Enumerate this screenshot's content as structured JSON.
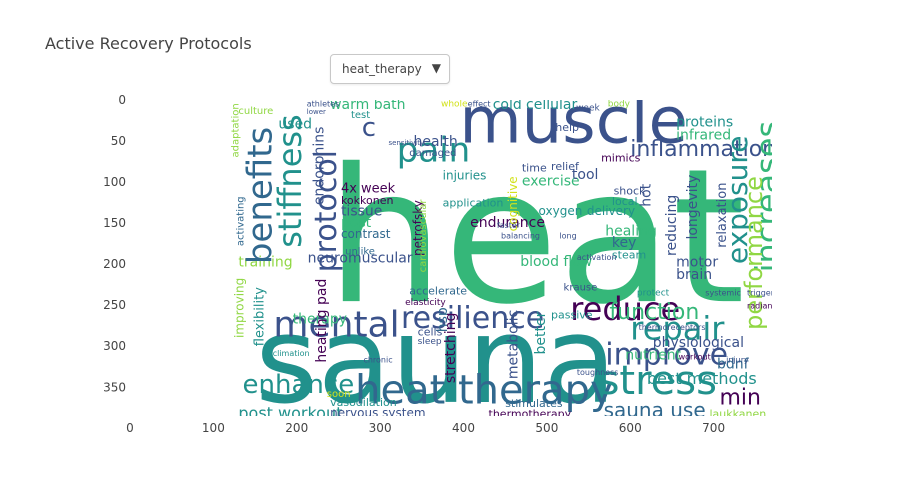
{
  "header": {
    "title": "Active Recovery Protocols"
  },
  "dropdown": {
    "selected": "heat_therapy",
    "arrow_icon": "triangle-down-icon"
  },
  "chart_data": {
    "type": "wordcloud",
    "title": "Active Recovery Protocols",
    "xlim": [
      0,
      770
    ],
    "ylim": [
      385,
      0
    ],
    "x_ticks": [
      "0",
      "100",
      "200",
      "300",
      "400",
      "500",
      "600",
      "700"
    ],
    "y_ticks": [
      "0",
      "50",
      "100",
      "150",
      "200",
      "250",
      "300",
      "350"
    ],
    "colors": {
      "dark_purple": "#440154",
      "indigo": "#3b528b",
      "slate": "#31688e",
      "teal": "#21918c",
      "green": "#35b779",
      "lime": "#90d743",
      "yellow": "#d2e21b"
    },
    "words": [
      {
        "text": "heat",
        "x": 235,
        "y": 245,
        "size": 186,
        "color": "#35b779",
        "rot": 0
      },
      {
        "text": "sauna",
        "x": 150,
        "y": 368,
        "size": 120,
        "color": "#21918c",
        "rot": 0
      },
      {
        "text": "muscle",
        "x": 395,
        "y": 52,
        "size": 64,
        "color": "#3b528b",
        "rot": 0
      },
      {
        "text": "heat therapy",
        "x": 270,
        "y": 370,
        "size": 40,
        "color": "#31688e",
        "rot": 0
      },
      {
        "text": "stress",
        "x": 562,
        "y": 358,
        "size": 40,
        "color": "#21918c",
        "rot": 0
      },
      {
        "text": "mental",
        "x": 172,
        "y": 288,
        "size": 36,
        "color": "#3b528b",
        "rot": 0
      },
      {
        "text": "resilience",
        "x": 325,
        "y": 278,
        "size": 30,
        "color": "#3b528b",
        "rot": 0
      },
      {
        "text": "reduce",
        "x": 528,
        "y": 268,
        "size": 32,
        "color": "#440154",
        "rot": 0
      },
      {
        "text": "improve",
        "x": 570,
        "y": 322,
        "size": 30,
        "color": "#3b528b",
        "rot": 0
      },
      {
        "text": "repair",
        "x": 600,
        "y": 292,
        "size": 32,
        "color": "#21918c",
        "rot": 0
      },
      {
        "text": "pain",
        "x": 320,
        "y": 75,
        "size": 34,
        "color": "#21918c",
        "rot": 0
      },
      {
        "text": "enhance",
        "x": 135,
        "y": 357,
        "size": 26,
        "color": "#21918c",
        "rot": 0
      },
      {
        "text": "inflammation",
        "x": 600,
        "y": 68,
        "size": 22,
        "color": "#3b528b",
        "rot": 0
      },
      {
        "text": "function",
        "x": 575,
        "y": 267,
        "size": 22,
        "color": "#35b779",
        "rot": 0
      },
      {
        "text": "sauna use",
        "x": 568,
        "y": 386,
        "size": 20,
        "color": "#31688e",
        "rot": 0
      },
      {
        "text": "post workout",
        "x": 130,
        "y": 388,
        "size": 16,
        "color": "#21918c",
        "rot": 0
      },
      {
        "text": "min",
        "x": 707,
        "y": 371,
        "size": 22,
        "color": "#440154",
        "rot": 0
      },
      {
        "text": "best methods",
        "x": 620,
        "y": 346,
        "size": 16,
        "color": "#21918c",
        "rot": 0
      },
      {
        "text": "physiological",
        "x": 627,
        "y": 301,
        "size": 14,
        "color": "#3b528b",
        "rot": 0
      },
      {
        "text": "nutrient",
        "x": 594,
        "y": 316,
        "size": 14,
        "color": "#35b779",
        "rot": 0
      },
      {
        "text": "bdnf",
        "x": 704,
        "y": 327,
        "size": 14,
        "color": "#31688e",
        "rot": 0
      },
      {
        "text": "laukkanen",
        "x": 695,
        "y": 387,
        "size": 11,
        "color": "#90d743",
        "rot": 0
      },
      {
        "text": "endurance",
        "x": 408,
        "y": 155,
        "size": 14,
        "color": "#440154",
        "rot": 0
      },
      {
        "text": "blood flow",
        "x": 468,
        "y": 202,
        "size": 14,
        "color": "#35b779",
        "rot": 0
      },
      {
        "text": "exercise",
        "x": 470,
        "y": 104,
        "size": 14,
        "color": "#35b779",
        "rot": 0
      },
      {
        "text": "tool",
        "x": 530,
        "y": 96,
        "size": 14,
        "color": "#3b528b",
        "rot": 0
      },
      {
        "text": "cellular",
        "x": 475,
        "y": 11,
        "size": 14,
        "color": "#21918c",
        "rot": 0
      },
      {
        "text": "cold",
        "x": 435,
        "y": 11,
        "size": 14,
        "color": "#21918c",
        "rot": 0
      },
      {
        "text": "warm bath",
        "x": 240,
        "y": 11,
        "size": 14,
        "color": "#35b779",
        "rot": 0
      },
      {
        "text": "health",
        "x": 340,
        "y": 56,
        "size": 14,
        "color": "#3b528b",
        "rot": 0
      },
      {
        "text": "c",
        "x": 278,
        "y": 44,
        "size": 26,
        "color": "#3b528b",
        "rot": 0
      },
      {
        "text": "proteins",
        "x": 655,
        "y": 32,
        "size": 14,
        "color": "#21918c",
        "rot": 0
      },
      {
        "text": "infrared",
        "x": 655,
        "y": 48,
        "size": 14,
        "color": "#35b779",
        "rot": 0
      },
      {
        "text": "healing",
        "x": 570,
        "y": 165,
        "size": 14,
        "color": "#35b779",
        "rot": 0
      },
      {
        "text": "key",
        "x": 578,
        "y": 179,
        "size": 14,
        "color": "#31688e",
        "rot": 0
      },
      {
        "text": "motor",
        "x": 655,
        "y": 203,
        "size": 14,
        "color": "#3b528b",
        "rot": 0
      },
      {
        "text": "brain",
        "x": 655,
        "y": 218,
        "size": 14,
        "color": "#3b528b",
        "rot": 0
      },
      {
        "text": "used",
        "x": 178,
        "y": 35,
        "size": 14,
        "color": "#21918c",
        "rot": 0
      },
      {
        "text": "4x week",
        "x": 253,
        "y": 113,
        "size": 13,
        "color": "#440154",
        "rot": 0
      },
      {
        "text": "kokkonen",
        "x": 253,
        "y": 127,
        "size": 11,
        "color": "#440154",
        "rot": 0
      },
      {
        "text": "tissue",
        "x": 253,
        "y": 141,
        "size": 14,
        "color": "#3b528b",
        "rot": 0
      },
      {
        "text": "post",
        "x": 253,
        "y": 155,
        "size": 14,
        "color": "#35b779",
        "rot": 0
      },
      {
        "text": "contrast",
        "x": 253,
        "y": 168,
        "size": 12,
        "color": "#31688e",
        "rot": 0
      },
      {
        "text": "neuromuscular",
        "x": 213,
        "y": 198,
        "size": 14,
        "color": "#3b528b",
        "rot": 0
      },
      {
        "text": "training",
        "x": 130,
        "y": 203,
        "size": 14,
        "color": "#90d743",
        "rot": 0
      },
      {
        "text": "therapy",
        "x": 195,
        "y": 272,
        "size": 14,
        "color": "#35b779",
        "rot": 0
      },
      {
        "text": "heating pad",
        "x": 235,
        "y": 320,
        "size": 14,
        "color": "#440154",
        "rot": -90
      },
      {
        "text": "nervous system",
        "x": 240,
        "y": 386,
        "size": 12,
        "color": "#3b528b",
        "rot": 0
      },
      {
        "text": "vasodilation",
        "x": 240,
        "y": 373,
        "size": 11,
        "color": "#21918c",
        "rot": 0
      },
      {
        "text": "thermotherapy",
        "x": 430,
        "y": 387,
        "size": 11,
        "color": "#440154",
        "rot": 0
      },
      {
        "text": "stimulates",
        "x": 450,
        "y": 374,
        "size": 11,
        "color": "#31688e",
        "rot": 0
      },
      {
        "text": "oxygen",
        "x": 490,
        "y": 140,
        "size": 12,
        "color": "#21918c",
        "rot": 0
      },
      {
        "text": "delivery",
        "x": 548,
        "y": 140,
        "size": 12,
        "color": "#21918c",
        "rot": 0
      },
      {
        "text": "injuries",
        "x": 375,
        "y": 97,
        "size": 12,
        "color": "#21918c",
        "rot": 0
      },
      {
        "text": "time",
        "x": 470,
        "y": 87,
        "size": 11,
        "color": "#3b528b",
        "rot": 0
      },
      {
        "text": "relief",
        "x": 505,
        "y": 85,
        "size": 11,
        "color": "#3b528b",
        "rot": 0
      },
      {
        "text": "application",
        "x": 375,
        "y": 130,
        "size": 11,
        "color": "#21918c",
        "rot": 0
      },
      {
        "text": "shock",
        "x": 580,
        "y": 115,
        "size": 11,
        "color": "#3b528b",
        "rot": 0
      },
      {
        "text": "local",
        "x": 578,
        "y": 128,
        "size": 11,
        "color": "#21918c",
        "rot": 0
      },
      {
        "text": "mimics",
        "x": 565,
        "y": 75,
        "size": 11,
        "color": "#440154",
        "rot": 0
      },
      {
        "text": "steam",
        "x": 578,
        "y": 193,
        "size": 11,
        "color": "#21918c",
        "rot": 0
      },
      {
        "text": "passive",
        "x": 505,
        "y": 266,
        "size": 11,
        "color": "#21918c",
        "rot": 0
      },
      {
        "text": "cells",
        "x": 345,
        "y": 287,
        "size": 11,
        "color": "#3b528b",
        "rot": 0
      },
      {
        "text": "accelerate",
        "x": 335,
        "y": 237,
        "size": 11,
        "color": "#31688e",
        "rot": 0
      },
      {
        "text": "help",
        "x": 510,
        "y": 38,
        "size": 11,
        "color": "#3b528b",
        "rot": 0
      },
      {
        "text": "krause",
        "x": 520,
        "y": 232,
        "size": 10,
        "color": "#3b528b",
        "rot": 0
      },
      {
        "text": "benefits",
        "x": 170,
        "y": 200,
        "size": 34,
        "color": "#31688e",
        "rot": -90
      },
      {
        "text": "stiffness",
        "x": 205,
        "y": 180,
        "size": 32,
        "color": "#21918c",
        "rot": -90
      },
      {
        "text": "protocol",
        "x": 247,
        "y": 210,
        "size": 30,
        "color": "#3b528b",
        "rot": -90
      },
      {
        "text": "increases",
        "x": 778,
        "y": 210,
        "size": 32,
        "color": "#35b779",
        "rot": -90
      },
      {
        "text": "exposure",
        "x": 740,
        "y": 200,
        "size": 28,
        "color": "#21918c",
        "rot": -90
      },
      {
        "text": "performance",
        "x": 758,
        "y": 280,
        "size": 24,
        "color": "#90d743",
        "rot": -90
      },
      {
        "text": "endorphins",
        "x": 232,
        "y": 128,
        "size": 14,
        "color": "#3b528b",
        "rot": -90
      },
      {
        "text": "flexibility",
        "x": 160,
        "y": 300,
        "size": 13,
        "color": "#21918c",
        "rot": -90
      },
      {
        "text": "improving",
        "x": 136,
        "y": 290,
        "size": 12,
        "color": "#90d743",
        "rot": -90
      },
      {
        "text": "petrofsky",
        "x": 350,
        "y": 190,
        "size": 12,
        "color": "#440154",
        "rot": -90
      },
      {
        "text": "hsp",
        "x": 380,
        "y": 283,
        "size": 14,
        "color": "#31688e",
        "rot": -90
      },
      {
        "text": "stretching",
        "x": 390,
        "y": 345,
        "size": 14,
        "color": "#440154",
        "rot": -90
      },
      {
        "text": "metabolic",
        "x": 465,
        "y": 340,
        "size": 14,
        "color": "#3b528b",
        "rot": -90
      },
      {
        "text": "better",
        "x": 498,
        "y": 310,
        "size": 14,
        "color": "#21918c",
        "rot": -90
      },
      {
        "text": "reducing",
        "x": 655,
        "y": 190,
        "size": 14,
        "color": "#3b528b",
        "rot": -90
      },
      {
        "text": "longevity",
        "x": 680,
        "y": 170,
        "size": 14,
        "color": "#3b528b",
        "rot": -90
      },
      {
        "text": "relaxation",
        "x": 715,
        "y": 180,
        "size": 13,
        "color": "#3b528b",
        "rot": -90
      },
      {
        "text": "hot",
        "x": 624,
        "y": 130,
        "size": 14,
        "color": "#3b528b",
        "rot": -90
      },
      {
        "text": "cognitive",
        "x": 464,
        "y": 160,
        "size": 12,
        "color": "#d2e21b",
        "rot": -90
      },
      {
        "text": "cardiovascular",
        "x": 355,
        "y": 210,
        "size": 10,
        "color": "#90d743",
        "rot": -90
      },
      {
        "text": "adaptation",
        "x": 130,
        "y": 70,
        "size": 10,
        "color": "#90d743",
        "rot": -90
      },
      {
        "text": "activating",
        "x": 136,
        "y": 178,
        "size": 10,
        "color": "#31688e",
        "rot": -90
      },
      {
        "text": "culture",
        "x": 130,
        "y": 17,
        "size": 10,
        "color": "#90d743",
        "rot": 0
      },
      {
        "text": "damaged",
        "x": 335,
        "y": 68,
        "size": 10,
        "color": "#3b528b",
        "rot": 0
      },
      {
        "text": "test",
        "x": 265,
        "y": 22,
        "size": 10,
        "color": "#21918c",
        "rot": 0
      },
      {
        "text": "whole",
        "x": 373,
        "y": 8,
        "size": 9,
        "color": "#d2e21b",
        "rot": 0
      },
      {
        "text": "effect",
        "x": 405,
        "y": 8,
        "size": 8,
        "color": "#3b528b",
        "rot": 0
      },
      {
        "text": "body",
        "x": 573,
        "y": 8,
        "size": 9,
        "color": "#90d743",
        "rot": 0
      },
      {
        "text": "week",
        "x": 535,
        "y": 13,
        "size": 9,
        "color": "#3b528b",
        "rot": 0
      },
      {
        "text": "unlike",
        "x": 258,
        "y": 188,
        "size": 10,
        "color": "#31688e",
        "rot": 0
      },
      {
        "text": "elasticity",
        "x": 330,
        "y": 250,
        "size": 9,
        "color": "#440154",
        "rot": 0
      },
      {
        "text": "sleep",
        "x": 345,
        "y": 297,
        "size": 9,
        "color": "#3b528b",
        "rot": 0
      },
      {
        "text": "soon",
        "x": 236,
        "y": 362,
        "size": 10,
        "color": "#d2e21b",
        "rot": 0
      },
      {
        "text": "acclimation",
        "x": 160,
        "y": 312,
        "size": 8,
        "color": "#21918c",
        "rot": 0
      },
      {
        "text": "chronic",
        "x": 280,
        "y": 320,
        "size": 8,
        "color": "#3b528b",
        "rot": 0
      },
      {
        "text": "protect",
        "x": 608,
        "y": 238,
        "size": 9,
        "color": "#21918c",
        "rot": 0
      },
      {
        "text": "activation",
        "x": 536,
        "y": 195,
        "size": 8,
        "color": "#3b528b",
        "rot": 0
      },
      {
        "text": "thermoreceptors",
        "x": 610,
        "y": 280,
        "size": 8,
        "color": "#3b528b",
        "rot": 0
      },
      {
        "text": "toughness",
        "x": 536,
        "y": 335,
        "size": 8,
        "color": "#3b528b",
        "rot": 0
      },
      {
        "text": "triggers",
        "x": 740,
        "y": 238,
        "size": 8,
        "color": "#3b528b",
        "rot": 0
      },
      {
        "text": "systemic",
        "x": 690,
        "y": 238,
        "size": 8,
        "color": "#3b528b",
        "rot": 0
      },
      {
        "text": "injury",
        "x": 715,
        "y": 320,
        "size": 8,
        "color": "#3b528b",
        "rot": 0
      },
      {
        "text": "workout",
        "x": 658,
        "y": 316,
        "size": 8,
        "color": "#440154",
        "rot": 0
      },
      {
        "text": "radiant",
        "x": 740,
        "y": 254,
        "size": 8,
        "color": "#440154",
        "rot": 0
      },
      {
        "text": "balancing",
        "x": 445,
        "y": 169,
        "size": 8,
        "color": "#3b528b",
        "rot": 0
      },
      {
        "text": "long",
        "x": 515,
        "y": 169,
        "size": 8,
        "color": "#3b528b",
        "rot": 0
      },
      {
        "text": "faster",
        "x": 440,
        "y": 156,
        "size": 8,
        "color": "#3b528b",
        "rot": 0
      },
      {
        "text": "sensitivity",
        "x": 310,
        "y": 55,
        "size": 7,
        "color": "#3b528b",
        "rot": 0
      },
      {
        "text": "athletes",
        "x": 212,
        "y": 8,
        "size": 8,
        "color": "#3b528b",
        "rot": 0
      },
      {
        "text": "lower",
        "x": 212,
        "y": 17,
        "size": 7,
        "color": "#3b528b",
        "rot": 0
      }
    ]
  }
}
